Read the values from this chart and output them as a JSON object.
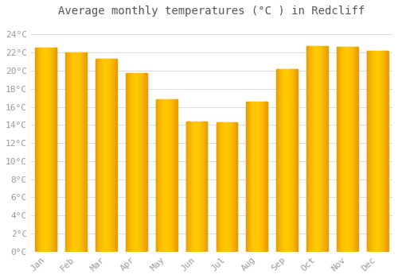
{
  "title": "Average monthly temperatures (°C ) in Redcliff",
  "months": [
    "Jan",
    "Feb",
    "Mar",
    "Apr",
    "May",
    "Jun",
    "Jul",
    "Aug",
    "Sep",
    "Oct",
    "Nov",
    "Dec"
  ],
  "values": [
    22.5,
    22.0,
    21.3,
    19.7,
    16.8,
    14.4,
    14.3,
    16.6,
    20.2,
    22.7,
    22.6,
    22.2
  ],
  "bar_color_edge": "#E08000",
  "bar_color_center": "#FFB800",
  "background_color": "#FFFFFF",
  "plot_bg_color": "#FFFFFF",
  "grid_color": "#DDDDDD",
  "ytick_labels": [
    "0°C",
    "2°C",
    "4°C",
    "6°C",
    "8°C",
    "10°C",
    "12°C",
    "14°C",
    "16°C",
    "18°C",
    "20°C",
    "22°C",
    "24°C"
  ],
  "ytick_values": [
    0,
    2,
    4,
    6,
    8,
    10,
    12,
    14,
    16,
    18,
    20,
    22,
    24
  ],
  "ylim": [
    0,
    25.5
  ],
  "title_fontsize": 10,
  "tick_fontsize": 8,
  "text_color": "#999999",
  "title_color": "#555555",
  "bar_width": 0.7,
  "gradient_steps": 50
}
